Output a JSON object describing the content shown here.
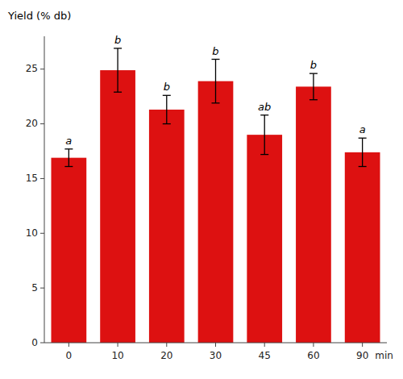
{
  "chart_data": {
    "type": "bar",
    "ylabel": "Yield (% db)",
    "xlabel": "min",
    "categories": [
      "0",
      "10",
      "20",
      "30",
      "45",
      "60",
      "90"
    ],
    "values": [
      16.9,
      24.9,
      21.3,
      23.9,
      19.0,
      23.4,
      17.4
    ],
    "errors": [
      0.8,
      2.0,
      1.3,
      2.0,
      1.8,
      1.2,
      1.3
    ],
    "annotations": [
      "a",
      "b",
      "b",
      "b",
      "ab",
      "b",
      "a"
    ],
    "color": "#dd1111",
    "ylim": [
      0,
      28
    ],
    "yticks": [
      0,
      5,
      10,
      15,
      20,
      25
    ],
    "grid": false
  }
}
